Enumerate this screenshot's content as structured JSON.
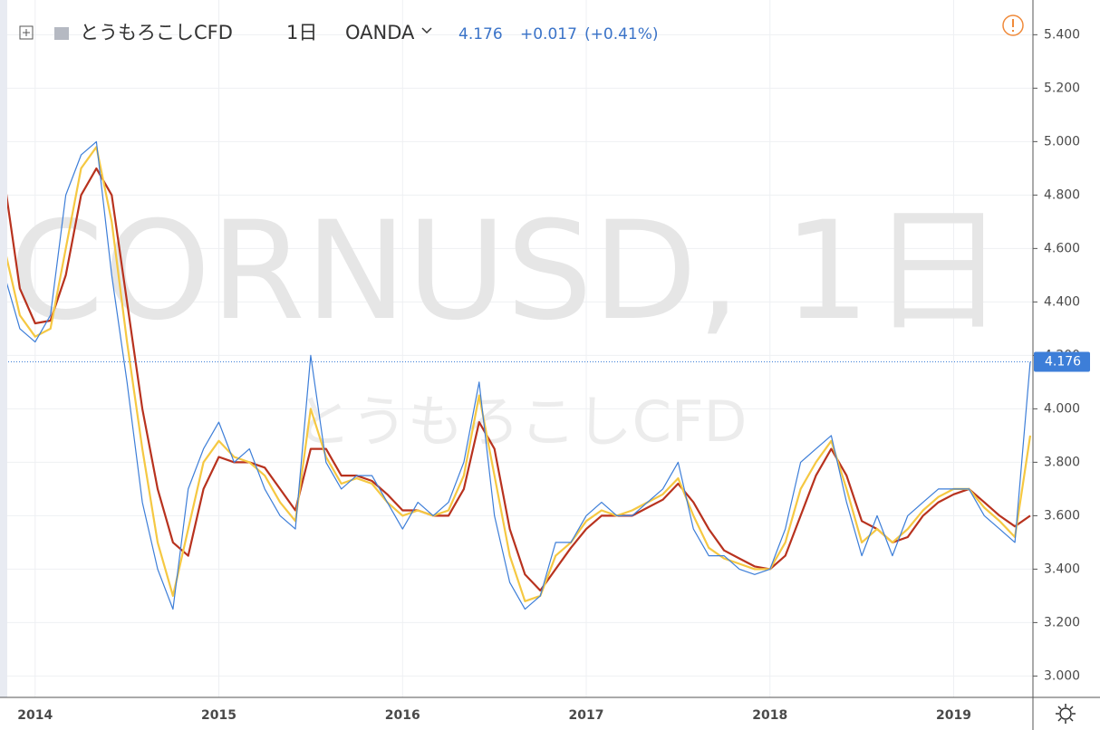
{
  "header": {
    "symbol": "とうもろこしCFD",
    "interval": "1日",
    "exchange": "OANDA",
    "change": "+0.017",
    "change_pct": "(+0.41%)"
  },
  "watermark": {
    "line1": "CORNUSD, 1日",
    "line2": "とうもろこしCFD"
  },
  "chart_data": {
    "type": "line",
    "categories": [
      null,
      null,
      "2014",
      null,
      null,
      null,
      null,
      null,
      null,
      null,
      null,
      null,
      null,
      null,
      "2015",
      null,
      null,
      null,
      null,
      null,
      null,
      null,
      null,
      null,
      null,
      null,
      "2016",
      null,
      null,
      null,
      null,
      null,
      null,
      null,
      null,
      null,
      null,
      null,
      "2017",
      null,
      null,
      null,
      null,
      null,
      null,
      null,
      null,
      null,
      null,
      null,
      "2018",
      null,
      null,
      null,
      null,
      null,
      null,
      null,
      null,
      null,
      null,
      null,
      "2019",
      null,
      null,
      null,
      null,
      null
    ],
    "series": [
      {
        "color": "#3d7ed8",
        "values": [
          4.5,
          4.3,
          4.25,
          4.35,
          4.8,
          4.95,
          5.0,
          4.5,
          4.1,
          3.65,
          3.4,
          3.25,
          3.7,
          3.85,
          3.95,
          3.8,
          3.85,
          3.7,
          3.6,
          3.55,
          4.2,
          3.8,
          3.7,
          3.75,
          3.75,
          3.65,
          3.55,
          3.65,
          3.6,
          3.65,
          3.8,
          4.1,
          3.6,
          3.35,
          3.25,
          3.3,
          3.5,
          3.5,
          3.6,
          3.65,
          3.6,
          3.6,
          3.65,
          3.7,
          3.8,
          3.55,
          3.45,
          3.45,
          3.4,
          3.38,
          3.4,
          3.55,
          3.8,
          3.85,
          3.9,
          3.65,
          3.45,
          3.6,
          3.45,
          3.6,
          3.65,
          3.7,
          3.7,
          3.7,
          3.6,
          3.55,
          3.5,
          4.176
        ]
      },
      {
        "color": "#f5c842",
        "values": [
          4.6,
          4.35,
          4.27,
          4.3,
          4.6,
          4.9,
          4.98,
          4.7,
          4.25,
          3.85,
          3.5,
          3.3,
          3.55,
          3.8,
          3.88,
          3.82,
          3.8,
          3.75,
          3.65,
          3.58,
          4.0,
          3.82,
          3.72,
          3.74,
          3.72,
          3.65,
          3.6,
          3.62,
          3.6,
          3.62,
          3.75,
          4.05,
          3.75,
          3.45,
          3.28,
          3.3,
          3.45,
          3.5,
          3.58,
          3.62,
          3.6,
          3.62,
          3.65,
          3.68,
          3.74,
          3.6,
          3.48,
          3.44,
          3.42,
          3.4,
          3.4,
          3.5,
          3.7,
          3.8,
          3.88,
          3.7,
          3.5,
          3.55,
          3.5,
          3.55,
          3.62,
          3.67,
          3.7,
          3.7,
          3.63,
          3.58,
          3.52,
          3.9
        ]
      },
      {
        "color": "#b8321e",
        "values": [
          4.85,
          4.45,
          4.32,
          4.33,
          4.5,
          4.8,
          4.9,
          4.8,
          4.4,
          4.0,
          3.7,
          3.5,
          3.45,
          3.7,
          3.82,
          3.8,
          3.8,
          3.78,
          3.7,
          3.62,
          3.85,
          3.85,
          3.75,
          3.75,
          3.73,
          3.68,
          3.62,
          3.62,
          3.6,
          3.6,
          3.7,
          3.95,
          3.85,
          3.55,
          3.38,
          3.32,
          3.4,
          3.48,
          3.55,
          3.6,
          3.6,
          3.6,
          3.63,
          3.66,
          3.72,
          3.65,
          3.55,
          3.47,
          3.44,
          3.41,
          3.4,
          3.45,
          3.6,
          3.75,
          3.85,
          3.75,
          3.58,
          3.55,
          3.5,
          3.52,
          3.6,
          3.65,
          3.68,
          3.7,
          3.65,
          3.6,
          3.56,
          3.6
        ]
      }
    ],
    "last_price": 4.176,
    "ylim": [
      2.92,
      5.53
    ],
    "yticks": [
      {
        "value": 3.0,
        "label": "3.000"
      },
      {
        "value": 3.2,
        "label": "3.200"
      },
      {
        "value": 3.4,
        "label": "3.400"
      },
      {
        "value": 3.6,
        "label": "3.600"
      },
      {
        "value": 3.8,
        "label": "3.800"
      },
      {
        "value": 4.0,
        "label": "4.000"
      },
      {
        "value": 4.2,
        "label": "4.200"
      },
      {
        "value": 4.4,
        "label": "4.400"
      },
      {
        "value": 4.6,
        "label": "4.600"
      },
      {
        "value": 4.8,
        "label": "4.800"
      },
      {
        "value": 5.0,
        "label": "5.000"
      },
      {
        "value": 5.2,
        "label": "5.200"
      },
      {
        "value": 5.4,
        "label": "5.400"
      }
    ],
    "grid": true
  }
}
